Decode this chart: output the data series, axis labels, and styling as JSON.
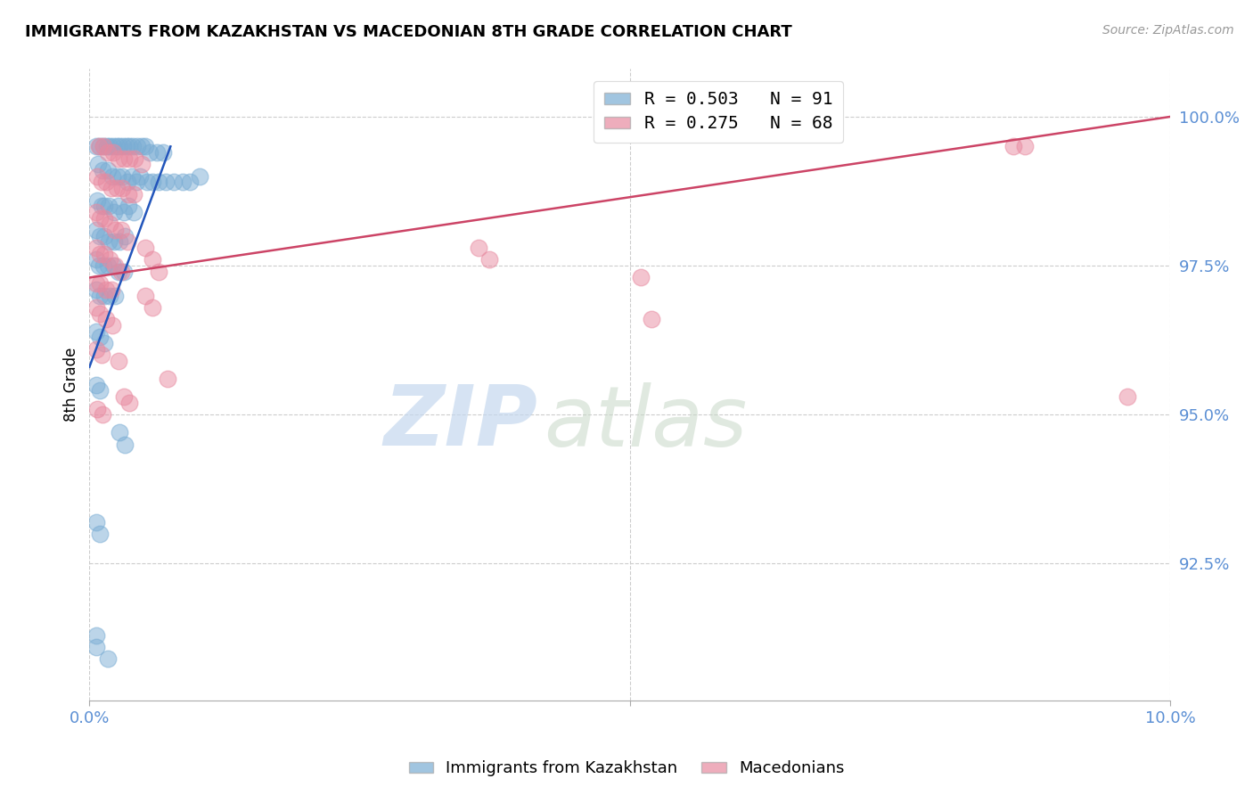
{
  "title": "IMMIGRANTS FROM KAZAKHSTAN VS MACEDONIAN 8TH GRADE CORRELATION CHART",
  "source": "Source: ZipAtlas.com",
  "ylabel": "8th Grade",
  "xlim": [
    0.0,
    10.0
  ],
  "ylim": [
    90.2,
    100.8
  ],
  "yticks": [
    92.5,
    95.0,
    97.5,
    100.0
  ],
  "ytick_labels": [
    "92.5%",
    "95.0%",
    "97.5%",
    "100.0%"
  ],
  "xtick_labels": [
    "0.0%",
    "",
    "10.0%"
  ],
  "xtick_positions": [
    0.0,
    5.0,
    10.0
  ],
  "legend_r1": "R = 0.503   N = 91",
  "legend_r2": "R = 0.275   N = 68",
  "legend_label1": "Immigrants from Kazakhstan",
  "legend_label2": "Macedonians",
  "blue_color": "#7aadd4",
  "pink_color": "#e88aa0",
  "tick_color": "#5b8fd4",
  "watermark_zip": "ZIP",
  "watermark_atlas": "atlas",
  "blue_scatter": [
    [
      0.06,
      99.5
    ],
    [
      0.1,
      99.5
    ],
    [
      0.13,
      99.5
    ],
    [
      0.16,
      99.5
    ],
    [
      0.19,
      99.5
    ],
    [
      0.22,
      99.5
    ],
    [
      0.25,
      99.5
    ],
    [
      0.28,
      99.5
    ],
    [
      0.31,
      99.5
    ],
    [
      0.34,
      99.5
    ],
    [
      0.37,
      99.5
    ],
    [
      0.4,
      99.5
    ],
    [
      0.44,
      99.5
    ],
    [
      0.48,
      99.5
    ],
    [
      0.52,
      99.5
    ],
    [
      0.56,
      99.4
    ],
    [
      0.62,
      99.4
    ],
    [
      0.68,
      99.4
    ],
    [
      0.08,
      99.2
    ],
    [
      0.12,
      99.1
    ],
    [
      0.17,
      99.1
    ],
    [
      0.21,
      99.0
    ],
    [
      0.26,
      99.0
    ],
    [
      0.3,
      99.0
    ],
    [
      0.35,
      98.9
    ],
    [
      0.39,
      99.0
    ],
    [
      0.43,
      98.9
    ],
    [
      0.47,
      99.0
    ],
    [
      0.53,
      98.9
    ],
    [
      0.58,
      98.9
    ],
    [
      0.64,
      98.9
    ],
    [
      0.71,
      98.9
    ],
    [
      0.78,
      98.9
    ],
    [
      0.86,
      98.9
    ],
    [
      0.93,
      98.9
    ],
    [
      1.02,
      99.0
    ],
    [
      0.07,
      98.6
    ],
    [
      0.11,
      98.5
    ],
    [
      0.14,
      98.5
    ],
    [
      0.18,
      98.5
    ],
    [
      0.23,
      98.4
    ],
    [
      0.27,
      98.5
    ],
    [
      0.32,
      98.4
    ],
    [
      0.36,
      98.5
    ],
    [
      0.41,
      98.4
    ],
    [
      0.06,
      98.1
    ],
    [
      0.1,
      98.0
    ],
    [
      0.14,
      98.0
    ],
    [
      0.18,
      97.9
    ],
    [
      0.23,
      97.9
    ],
    [
      0.28,
      97.9
    ],
    [
      0.33,
      98.0
    ],
    [
      0.06,
      97.6
    ],
    [
      0.09,
      97.5
    ],
    [
      0.13,
      97.5
    ],
    [
      0.17,
      97.5
    ],
    [
      0.22,
      97.5
    ],
    [
      0.27,
      97.4
    ],
    [
      0.32,
      97.4
    ],
    [
      0.06,
      97.1
    ],
    [
      0.1,
      97.0
    ],
    [
      0.14,
      97.0
    ],
    [
      0.19,
      97.0
    ],
    [
      0.24,
      97.0
    ],
    [
      0.06,
      96.4
    ],
    [
      0.1,
      96.3
    ],
    [
      0.14,
      96.2
    ],
    [
      0.06,
      95.5
    ],
    [
      0.1,
      95.4
    ],
    [
      0.28,
      94.7
    ],
    [
      0.33,
      94.5
    ],
    [
      0.06,
      93.2
    ],
    [
      0.1,
      93.0
    ],
    [
      0.06,
      91.3
    ],
    [
      0.06,
      91.1
    ],
    [
      0.17,
      90.9
    ]
  ],
  "pink_scatter": [
    [
      0.09,
      99.5
    ],
    [
      0.13,
      99.5
    ],
    [
      0.17,
      99.4
    ],
    [
      0.22,
      99.4
    ],
    [
      0.27,
      99.3
    ],
    [
      0.32,
      99.3
    ],
    [
      0.37,
      99.3
    ],
    [
      0.42,
      99.3
    ],
    [
      0.48,
      99.2
    ],
    [
      0.07,
      99.0
    ],
    [
      0.11,
      98.9
    ],
    [
      0.15,
      98.9
    ],
    [
      0.2,
      98.8
    ],
    [
      0.25,
      98.8
    ],
    [
      0.3,
      98.8
    ],
    [
      0.36,
      98.7
    ],
    [
      0.41,
      98.7
    ],
    [
      0.06,
      98.4
    ],
    [
      0.1,
      98.3
    ],
    [
      0.14,
      98.3
    ],
    [
      0.19,
      98.2
    ],
    [
      0.24,
      98.1
    ],
    [
      0.29,
      98.1
    ],
    [
      0.35,
      97.9
    ],
    [
      0.06,
      97.8
    ],
    [
      0.1,
      97.7
    ],
    [
      0.14,
      97.7
    ],
    [
      0.19,
      97.6
    ],
    [
      0.24,
      97.5
    ],
    [
      0.29,
      97.4
    ],
    [
      0.06,
      97.2
    ],
    [
      0.1,
      97.2
    ],
    [
      0.15,
      97.1
    ],
    [
      0.2,
      97.1
    ],
    [
      0.06,
      96.8
    ],
    [
      0.1,
      96.7
    ],
    [
      0.15,
      96.6
    ],
    [
      0.21,
      96.5
    ],
    [
      0.06,
      96.1
    ],
    [
      0.11,
      96.0
    ],
    [
      0.27,
      95.9
    ],
    [
      0.32,
      95.3
    ],
    [
      0.37,
      95.2
    ],
    [
      0.07,
      95.1
    ],
    [
      0.12,
      95.0
    ],
    [
      0.52,
      97.8
    ],
    [
      0.58,
      97.6
    ],
    [
      0.64,
      97.4
    ],
    [
      0.52,
      97.0
    ],
    [
      0.58,
      96.8
    ],
    [
      0.72,
      95.6
    ],
    [
      3.6,
      97.8
    ],
    [
      3.7,
      97.6
    ],
    [
      5.1,
      97.3
    ],
    [
      5.2,
      96.6
    ],
    [
      8.55,
      99.5
    ],
    [
      8.65,
      99.5
    ],
    [
      9.6,
      95.3
    ]
  ],
  "blue_line_x": [
    0.0,
    0.75
  ],
  "blue_line_y": [
    95.8,
    99.5
  ],
  "pink_line_x": [
    0.0,
    10.0
  ],
  "pink_line_y": [
    97.3,
    100.0
  ]
}
